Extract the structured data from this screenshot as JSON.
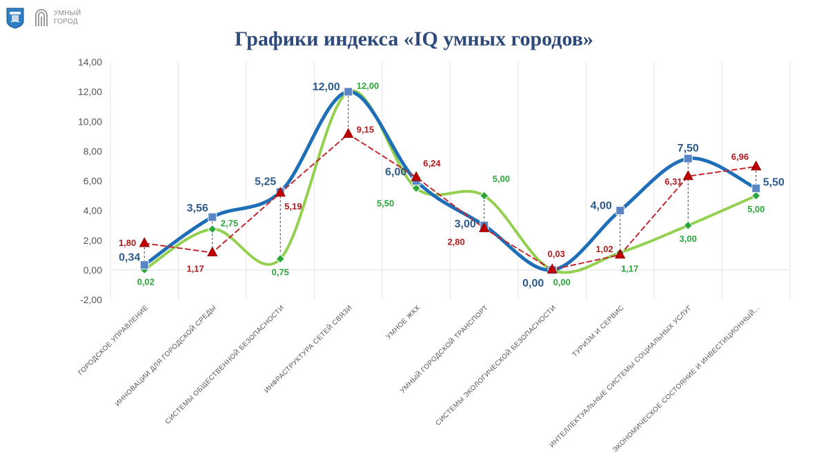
{
  "header": {
    "logo_text_line1": "УМНЫЙ",
    "logo_text_line2": "ГОРОД",
    "crest_icon": "city-crest-icon",
    "brand_icon": "fingerprint-icon"
  },
  "chart_data": {
    "type": "line",
    "title": "Графики индекса «IQ умных городов»",
    "xlabel": "",
    "ylabel": "",
    "ylim": [
      -2,
      14
    ],
    "yticks": [
      "-2,00",
      "0,00",
      "2,00",
      "4,00",
      "6,00",
      "8,00",
      "10,00",
      "12,00",
      "14,00"
    ],
    "grid": true,
    "legend": "none",
    "categories": [
      "ГОРОДСКОЕ УПРАВЛЕНИЕ",
      "ИННОВАЦИИ ДЛЯ ГОРОДСКОЙ СРЕДЫ",
      "СИСТЕМЫ ОБЩЕСТВЕННОЙ БЕЗОПАСНОСТИ",
      "ИНФРАСТРУКТУРА СЕТЕЙ СВЯЗИ",
      "УМНОЕ ЖКХ",
      "УМНЫЙ ГОРОДСКОЙ ТРАНСПОРТ",
      "СИСТЕМЫ ЭКОЛОГИЧЕСКОЙ БЕЗОПАСНОСТИ",
      "ТУРИЗМ И СЕРВИС",
      "ИНТЕЛЛЕКТУАЛЬНЫЕ СИСТЕМЫ СОЦИАЛЬНЫХ УСЛУГ",
      "ЭКОНОМИЧЕСКОЕ СОСТОЯНИЕ И ИНВЕСТИЦИОННЫЙ..."
    ],
    "series": [
      {
        "color": "#1f6fb8",
        "style": "solid-smooth",
        "marker": "square",
        "values": [
          0.34,
          3.56,
          5.25,
          12.0,
          6.0,
          3.0,
          0.0,
          4.0,
          7.5,
          5.5
        ],
        "labels": [
          "0,34",
          "3,56",
          "5,25",
          "12,00",
          "6,00",
          "3,00",
          "0,00",
          "4,00",
          "7,50",
          "5,50"
        ],
        "label_color": "#2e5a8c"
      },
      {
        "color": "#92d050",
        "style": "solid-smooth",
        "marker": "diamond",
        "values": [
          0.02,
          2.75,
          0.75,
          12.0,
          5.5,
          5.0,
          0.0,
          1.17,
          3.0,
          5.0
        ],
        "labels": [
          "0,02",
          "2,75",
          "0,75",
          "12,00",
          "5,50",
          "5,00",
          "0,00",
          "1,17",
          "3,00",
          "5,00"
        ],
        "label_color": "#2aa63a"
      },
      {
        "color": "#c0282d",
        "style": "dashed",
        "marker": "triangle",
        "values": [
          1.8,
          1.17,
          5.19,
          9.15,
          6.24,
          2.8,
          0.03,
          1.02,
          6.31,
          6.96
        ],
        "labels": [
          "1,80",
          "1,17",
          "5,19",
          "9,15",
          "6,24",
          "2,80",
          "0,03",
          "1,02",
          "6,31",
          "6,96"
        ],
        "label_color": "#b0191e"
      }
    ]
  }
}
